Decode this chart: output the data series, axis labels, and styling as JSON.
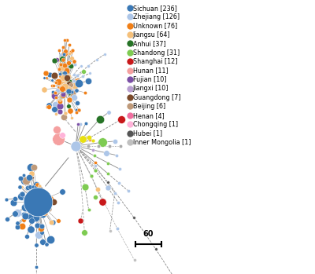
{
  "legend_entries": [
    {
      "label": "Sichuan [236]",
      "color": "#3a78b5"
    },
    {
      "label": "Zhejiang [126]",
      "color": "#adc6e8"
    },
    {
      "label": "Unknown [76]",
      "color": "#f07f17"
    },
    {
      "label": "Jiangsu [64]",
      "color": "#f5c07a"
    },
    {
      "label": "Anhui [37]",
      "color": "#267326"
    },
    {
      "label": "Shandong [31]",
      "color": "#7ecb52"
    },
    {
      "label": "Shanghai [12]",
      "color": "#c8181a"
    },
    {
      "label": "Hunan [11]",
      "color": "#f5a0a0"
    },
    {
      "label": "Fujian [10]",
      "color": "#7b4fa6"
    },
    {
      "label": "Jiangxi [10]",
      "color": "#b89fd0"
    },
    {
      "label": "Guangdong [7]",
      "color": "#7b4a2a"
    },
    {
      "label": "Beijing [6]",
      "color": "#bf9a7a"
    },
    {
      "label": "Henan [4]",
      "color": "#f06fa0"
    },
    {
      "label": "Chongqing [1]",
      "color": "#ffb3d9"
    },
    {
      "label": "Hubei [1]",
      "color": "#555555"
    },
    {
      "label": "Inner Mongolia [1]",
      "color": "#c0c0c0"
    }
  ],
  "bg_color": "#ffffff"
}
